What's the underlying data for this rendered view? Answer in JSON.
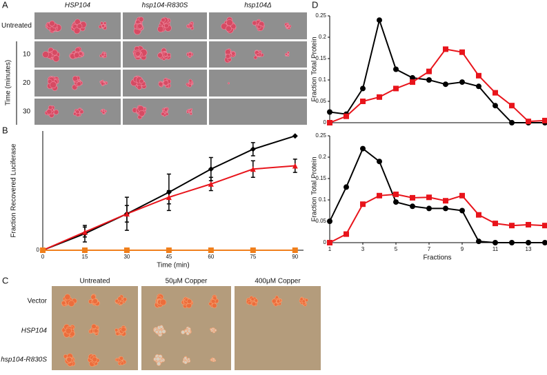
{
  "panel_labels": [
    "A",
    "B",
    "C",
    "D"
  ],
  "panel_a": {
    "columns": [
      "HSP104",
      "hsp104-R830S",
      "hsp104Δ"
    ],
    "rows": [
      "Untreated",
      "10",
      "20",
      "30"
    ],
    "axis_label": "Time (minutes)"
  },
  "panel_c": {
    "columns": [
      "Untreated",
      "50μM Copper",
      "400μM Copper"
    ],
    "rows": [
      "Vector",
      "HSP104",
      "hsp104-R830S"
    ]
  },
  "chart_data": [
    {
      "type": "line",
      "xlabel": "Time (min)",
      "ylabel": "Fraction Recovered Luciferase",
      "x": [
        0,
        15,
        30,
        45,
        60,
        75,
        90
      ],
      "xlim": [
        0,
        93
      ],
      "xticks": [
        0,
        15,
        30,
        45,
        60,
        75,
        90
      ],
      "ylim": [
        0,
        0.72
      ],
      "yticks": [
        0
      ],
      "series": [
        {
          "color": "#000000",
          "marker": "diamond",
          "values": [
            0,
            0.1,
            0.22,
            0.35,
            0.49,
            0.61,
            0.69
          ],
          "errors": [
            0,
            0.05,
            0.1,
            0.11,
            0.07,
            0.04,
            0
          ]
        },
        {
          "color": "#e8141b",
          "marker": "triangle",
          "values": [
            0,
            0.11,
            0.22,
            0.32,
            0.4,
            0.49,
            0.51
          ],
          "errors": [
            0,
            0.03,
            0.05,
            0.04,
            0.04,
            0.05,
            0.04
          ]
        },
        {
          "color": "#f07f1b",
          "marker": "square",
          "values": [
            0,
            0,
            0,
            0,
            0,
            0,
            0
          ]
        }
      ]
    },
    {
      "type": "line",
      "ylabel": "Fraction Total Protein",
      "x": [
        1,
        2,
        3,
        4,
        5,
        6,
        7,
        8,
        9,
        10,
        11,
        12,
        13,
        14
      ],
      "xlim": [
        1,
        14
      ],
      "ylim": [
        0,
        0.25
      ],
      "yticks": [
        0,
        0.05,
        0.1,
        0.15,
        0.2,
        0.25
      ],
      "series": [
        {
          "color": "#000000",
          "marker": "circle",
          "values": [
            0.025,
            0.02,
            0.08,
            0.24,
            0.125,
            0.105,
            0.1,
            0.09,
            0.095,
            0.085,
            0.04,
            0,
            0,
            0
          ]
        },
        {
          "color": "#e8141b",
          "marker": "square",
          "values": [
            0,
            0.015,
            0.05,
            0.06,
            0.08,
            0.095,
            0.12,
            0.172,
            0.165,
            0.11,
            0.07,
            0.04,
            0.003,
            0.005
          ]
        }
      ]
    },
    {
      "type": "line",
      "ylabel": "Fraction Total Protein",
      "xlabel": "Fractions",
      "x": [
        1,
        2,
        3,
        4,
        5,
        6,
        7,
        8,
        9,
        10,
        11,
        12,
        13,
        14
      ],
      "xlim": [
        1,
        14
      ],
      "xticks": [
        1,
        3,
        5,
        7,
        9,
        11,
        13
      ],
      "ylim": [
        0,
        0.25
      ],
      "yticks": [
        0,
        0.05,
        0.1,
        0.15,
        0.2,
        0.25
      ],
      "series": [
        {
          "color": "#000000",
          "marker": "circle",
          "values": [
            0.05,
            0.13,
            0.22,
            0.19,
            0.095,
            0.085,
            0.08,
            0.08,
            0.075,
            0.003,
            0,
            0,
            0,
            0
          ]
        },
        {
          "color": "#e8141b",
          "marker": "square",
          "values": [
            0,
            0.02,
            0.09,
            0.11,
            0.113,
            0.105,
            0.106,
            0.098,
            0.11,
            0.065,
            0.045,
            0.04,
            0.042,
            0.04
          ]
        }
      ]
    }
  ]
}
